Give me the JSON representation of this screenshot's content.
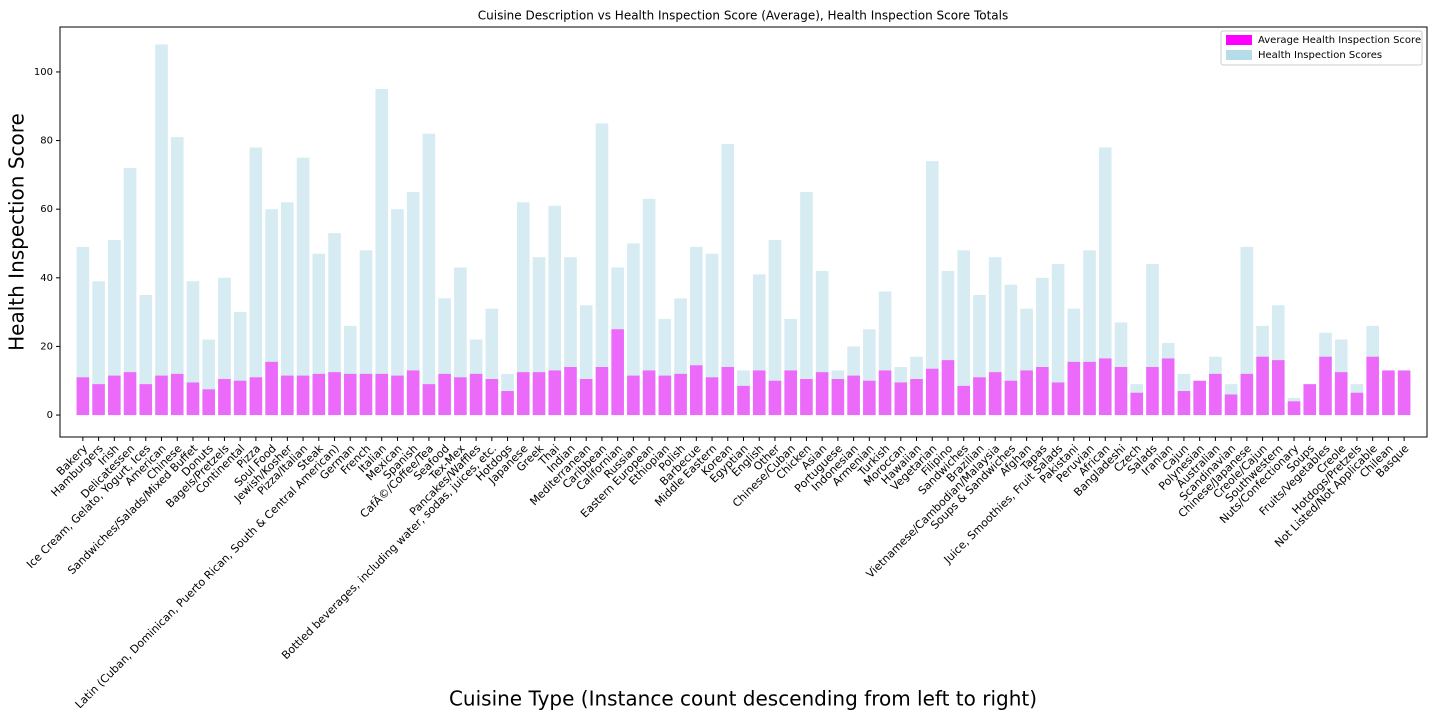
{
  "chart_data": {
    "type": "bar",
    "title": "Cuisine Description vs Health Inspection Score (Average), Health Inspection Score Totals",
    "x_label": "Cuisine Type (Instance count descending from left to right)",
    "y_label": "Health Inspection Score",
    "categories": [
      "Bakery",
      "Hamburgers",
      "Irish",
      "Delicatessen",
      "Ice Cream, Gelato, Yogurt, Ices",
      "American",
      "Chinese",
      "Sandwiches/Salads/Mixed Buffet",
      "Donuts",
      "Bagels/Pretzels",
      "Continental",
      "Pizza",
      "Soul Food",
      "Jewish/Kosher",
      "Pizza/Italian",
      "Steak",
      "Latin (Cuban, Dominican, Puerto Rican, South & Central American)",
      "German",
      "French",
      "Italian",
      "Mexican",
      "Spanish",
      "CafÃ©/Coffee/Tea",
      "Seafood",
      "Tex-Mex",
      "Pancakes/Waffles",
      "Bottled beverages, including water, sodas, juices, etc.",
      "Hotdogs",
      "Japanese",
      "Greek",
      "Thai",
      "Indian",
      "Mediterranean",
      "Caribbean",
      "Californian",
      "Russian",
      "Eastern European",
      "Ethiopian",
      "Polish",
      "Barbecue",
      "Middle Eastern",
      "Korean",
      "Egyptian",
      "English",
      "Other",
      "Chinese/Cuban",
      "Chicken",
      "Asian",
      "Portuguese",
      "Indonesian",
      "Armenian",
      "Turkish",
      "Moroccan",
      "Hawaiian",
      "Vegetarian",
      "Filipino",
      "Sandwiches",
      "Brazilian",
      "Vietnamese/Cambodian/Malaysia",
      "Soups & Sandwiches",
      "Afghan",
      "Tapas",
      "Juice, Smoothies, Fruit Salads",
      "Pakistani",
      "Peruvian",
      "African",
      "Bangladeshi",
      "Czech",
      "Salads",
      "Iranian",
      "Cajun",
      "Polynesian",
      "Australian",
      "Scandinavian",
      "Chinese/Japanese",
      "Creole/Cajun",
      "Southwestern",
      "Nuts/Confectionary",
      "Soups",
      "Fruits/Vegetables",
      "Creole",
      "Hotdogs/Pretzels",
      "Not Listed/Not Applicable",
      "Chilean",
      "Basque"
    ],
    "series": [
      {
        "name": "Health Inspection Scores",
        "color": "#add8e6",
        "opacity": 0.5,
        "values": [
          49,
          39,
          51,
          72,
          35,
          108,
          81,
          39,
          22,
          40,
          30,
          78,
          60,
          62,
          75,
          47,
          53,
          26,
          48,
          95,
          60,
          65,
          82,
          34,
          43,
          22,
          31,
          12,
          62,
          46,
          61,
          46,
          32,
          85,
          43,
          50,
          63,
          28,
          34,
          49,
          47,
          79,
          13,
          41,
          51,
          28,
          65,
          42,
          13,
          20,
          25,
          36,
          14,
          17,
          74,
          42,
          48,
          35,
          46,
          38,
          31,
          40,
          44,
          31,
          48,
          78,
          27,
          9,
          44,
          21,
          12,
          10,
          17,
          9,
          49,
          26,
          32,
          5,
          9,
          24,
          22,
          9,
          26,
          13,
          13
        ]
      },
      {
        "name": "Average Health Inspection Score",
        "color": "#ff00ff",
        "opacity": 0.55,
        "values": [
          11,
          9,
          11.5,
          12.5,
          9,
          11.5,
          12,
          9.5,
          7.5,
          10.5,
          10,
          11,
          15.5,
          11.5,
          11.5,
          12,
          12.5,
          12,
          12,
          12,
          11.5,
          13,
          9,
          12,
          11,
          12,
          10.5,
          7,
          12.5,
          12.5,
          13,
          14,
          10.5,
          14,
          25,
          11.5,
          13,
          11.5,
          12,
          14.5,
          11,
          14,
          8.5,
          13,
          10,
          13,
          10.5,
          12.5,
          10.5,
          11.5,
          10,
          13,
          9.5,
          10.5,
          13.5,
          16,
          8.5,
          11,
          12.5,
          10,
          13,
          14,
          9.5,
          15.5,
          15.5,
          16.5,
          14,
          6.5,
          14,
          16.5,
          7,
          10,
          12,
          6,
          12,
          17,
          16,
          4,
          9,
          17,
          12.5,
          6.5,
          17,
          13,
          13
        ]
      }
    ],
    "ylim": [
      -6.4,
      113.1
    ],
    "yticks": [
      0,
      20,
      40,
      60,
      80,
      100
    ],
    "legend": "upper right"
  }
}
